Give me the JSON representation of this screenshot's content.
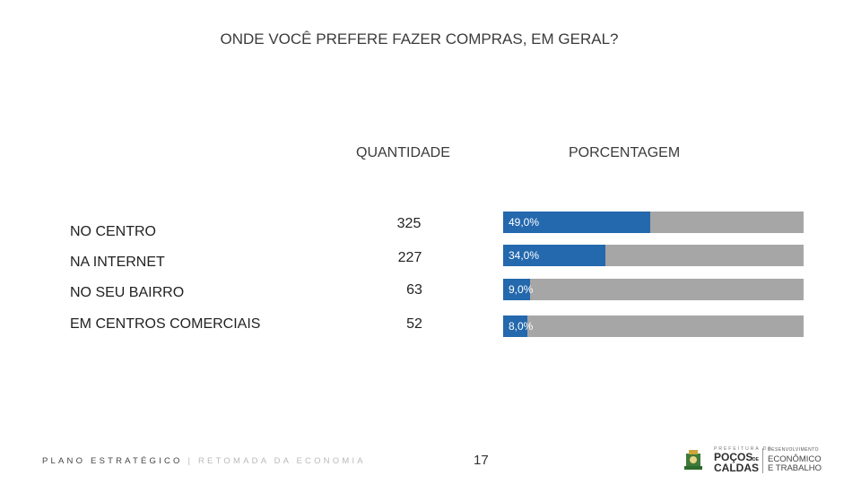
{
  "title": "ONDE VOCÊ PREFERE FAZER COMPRAS, EM GERAL?",
  "chart_data": {
    "type": "bar",
    "title": "ONDE VOCÊ PREFERE FAZER COMPRAS, EM GERAL?",
    "columns": [
      "QUANTIDADE",
      "PORCENTAGEM"
    ],
    "categories": [
      "NO CENTRO",
      "NA INTERNET",
      "NO SEU BAIRRO",
      "EM CENTROS COMERCIAIS"
    ],
    "quantities": [
      325,
      227,
      63,
      52
    ],
    "percentages": [
      49.0,
      34.0,
      9.0,
      8.0
    ],
    "percentage_labels": [
      "49,0%",
      "34,0%",
      "9,0%",
      "8,0%"
    ],
    "xlim": [
      0,
      100
    ],
    "colors": {
      "fill": [
        "#2468ad",
        "#2468ad",
        "#2468ad",
        "#2468ad"
      ],
      "background": "#a6a6a6"
    },
    "grid": false,
    "legend": "none"
  },
  "footer": {
    "plan": "PLANO ESTRATÉGICO",
    "separator": "|",
    "subtitle": "RETOMADA DA ECONOMIA",
    "page_number": "17"
  },
  "logo": {
    "prefeitura": "PREFEITURA DE",
    "city_line1": "POÇOS",
    "city_de": "DE",
    "city_line2": "CALDAS",
    "dept_line1": "DESENVOLVIMENTO",
    "dept_line2": "ECONÔMICO",
    "dept_line3": "E TRABALHO"
  }
}
